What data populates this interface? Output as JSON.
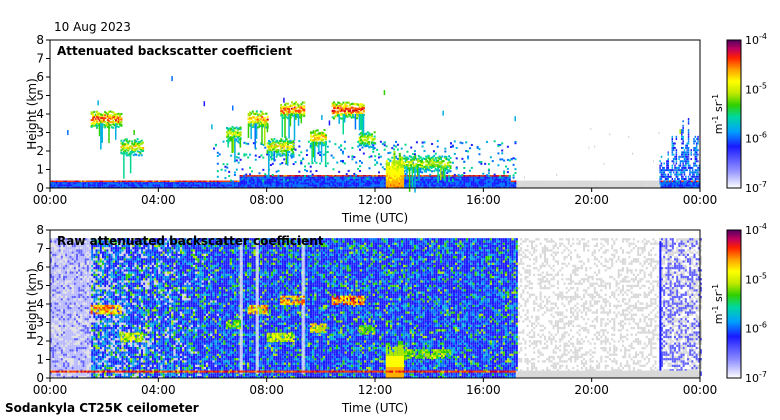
{
  "header": {
    "date": "10 Aug 2023"
  },
  "footer": {
    "instrument": "Sodankyla CT25K ceilometer"
  },
  "chart_data": [
    {
      "type": "heatmap",
      "title": "Attenuated backscatter coefficient",
      "xlabel": "Time (UTC)",
      "ylabel": "Height (km)",
      "x_ticks": [
        "00:00",
        "04:00",
        "08:00",
        "12:00",
        "16:00",
        "20:00",
        "00:00"
      ],
      "y_ticks": [
        "0",
        "1",
        "2",
        "3",
        "4",
        "5",
        "6",
        "7",
        "8"
      ],
      "xlim_hours": [
        0,
        24
      ],
      "ylim": [
        0,
        8
      ],
      "colorbar": {
        "labels": [
          "10",
          "10",
          "10",
          "10"
        ],
        "exponents": [
          "-7",
          "-6",
          "-5",
          "-4"
        ],
        "unit": "m",
        "unit_exp1": "-1",
        "unit_sr": "sr",
        "unit_exp2": "-1",
        "scale": "log",
        "range": [
          "1e-7",
          "1e-4"
        ]
      },
      "features": {
        "boundary_layer_top_km": 0.35,
        "cloud_layers": [
          {
            "t0": 1.5,
            "t1": 2.6,
            "h": 3.8,
            "level": 0.95
          },
          {
            "t0": 2.6,
            "t1": 3.4,
            "h": 2.3,
            "level": 0.75
          },
          {
            "t0": 6.5,
            "t1": 7.0,
            "h": 3.0,
            "level": 0.7
          },
          {
            "t0": 7.3,
            "t1": 8.0,
            "h": 3.8,
            "level": 0.9
          },
          {
            "t0": 8.0,
            "t1": 9.0,
            "h": 2.3,
            "level": 0.75
          },
          {
            "t0": 8.5,
            "t1": 9.4,
            "h": 4.3,
            "level": 0.95
          },
          {
            "t0": 9.6,
            "t1": 10.2,
            "h": 2.8,
            "level": 0.85
          },
          {
            "t0": 10.4,
            "t1": 11.6,
            "h": 4.3,
            "level": 1.0
          },
          {
            "t0": 11.4,
            "t1": 12.0,
            "h": 2.7,
            "level": 0.7
          },
          {
            "t0": 13.0,
            "t1": 14.8,
            "h": 1.4,
            "level": 0.7
          }
        ],
        "precipitation": {
          "t0": 12.4,
          "t1": 13.0,
          "top_km": 2.0
        },
        "data_gap_hours": [
          17.2,
          22.5
        ],
        "late_column_hours": [
          22.5,
          24.0
        ]
      }
    },
    {
      "type": "heatmap",
      "title": "Raw attenuated backscatter coefficient",
      "xlabel": "Time (UTC)",
      "ylabel": "Height (km)",
      "x_ticks": [
        "00:00",
        "04:00",
        "08:00",
        "12:00",
        "16:00",
        "20:00",
        "00:00"
      ],
      "y_ticks": [
        "0",
        "1",
        "2",
        "3",
        "4",
        "5",
        "6",
        "7",
        "8"
      ],
      "xlim_hours": [
        0,
        24
      ],
      "ylim": [
        0,
        8
      ],
      "colorbar": {
        "labels": [
          "10",
          "10",
          "10",
          "10"
        ],
        "exponents": [
          "-7",
          "-6",
          "-5",
          "-4"
        ],
        "unit": "m",
        "unit_exp1": "-1",
        "unit_sr": "sr",
        "unit_exp2": "-1",
        "scale": "log",
        "range": [
          "1e-7",
          "1e-4"
        ]
      },
      "features": {
        "noise_top_km": 7.5,
        "noisy_until_hours": 17.2,
        "late_column_hours": [
          22.5,
          24.0
        ]
      }
    }
  ]
}
